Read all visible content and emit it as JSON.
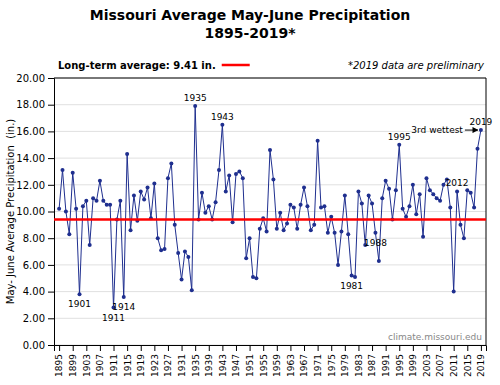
{
  "chart_data": {
    "type": "line",
    "title": "Missouri Average May-June Precipitation",
    "subtitle": "1895-2019*",
    "y_label": "May- June Average Precipitation  (in.)",
    "x": [
      1895,
      1896,
      1897,
      1898,
      1899,
      1900,
      1901,
      1902,
      1903,
      1904,
      1905,
      1906,
      1907,
      1908,
      1909,
      1910,
      1911,
      1912,
      1913,
      1914,
      1915,
      1916,
      1917,
      1918,
      1919,
      1920,
      1921,
      1922,
      1923,
      1924,
      1925,
      1926,
      1927,
      1928,
      1929,
      1930,
      1931,
      1932,
      1933,
      1934,
      1935,
      1936,
      1937,
      1938,
      1939,
      1940,
      1941,
      1942,
      1943,
      1944,
      1945,
      1946,
      1947,
      1948,
      1949,
      1950,
      1951,
      1952,
      1953,
      1954,
      1955,
      1956,
      1957,
      1958,
      1959,
      1960,
      1961,
      1962,
      1963,
      1964,
      1965,
      1966,
      1967,
      1968,
      1969,
      1970,
      1971,
      1972,
      1973,
      1974,
      1975,
      1976,
      1977,
      1978,
      1979,
      1980,
      1981,
      1982,
      1983,
      1984,
      1985,
      1986,
      1987,
      1988,
      1989,
      1990,
      1991,
      1992,
      1993,
      1994,
      1995,
      1996,
      1997,
      1998,
      1999,
      2000,
      2001,
      2002,
      2003,
      2004,
      2005,
      2006,
      2007,
      2008,
      2009,
      2010,
      2011,
      2012,
      2013,
      2014,
      2015,
      2016,
      2017,
      2018,
      2019
    ],
    "values": [
      10.2,
      13.1,
      10.0,
      8.3,
      12.9,
      10.2,
      3.8,
      10.4,
      10.8,
      7.5,
      11.0,
      10.8,
      12.3,
      10.8,
      10.5,
      10.5,
      2.8,
      9.4,
      10.8,
      3.6,
      14.3,
      8.6,
      11.2,
      9.3,
      11.5,
      10.9,
      11.8,
      9.5,
      12.1,
      8.0,
      7.1,
      7.2,
      12.5,
      13.6,
      9.0,
      6.9,
      4.9,
      7.0,
      6.6,
      4.1,
      17.9,
      9.4,
      11.4,
      9.9,
      10.4,
      9.4,
      10.7,
      13.1,
      16.5,
      11.5,
      12.7,
      9.2,
      12.8,
      13.0,
      12.5,
      6.5,
      8.0,
      5.1,
      5.0,
      8.7,
      9.5,
      8.5,
      14.6,
      12.4,
      8.7,
      9.9,
      8.6,
      9.1,
      10.5,
      10.3,
      8.7,
      10.5,
      11.8,
      10.4,
      8.6,
      9.0,
      15.3,
      10.3,
      10.4,
      8.4,
      9.6,
      8.4,
      6.0,
      8.5,
      11.2,
      8.3,
      5.2,
      5.1,
      11.5,
      10.6,
      7.5,
      11.2,
      10.6,
      8.4,
      6.3,
      11.0,
      12.3,
      11.7,
      9.4,
      11.6,
      15.0,
      10.2,
      9.6,
      10.4,
      12.0,
      9.8,
      11.3,
      8.1,
      12.5,
      11.6,
      11.3,
      11.0,
      10.8,
      12.0,
      12.4,
      10.3,
      4.0,
      11.5,
      9.0,
      8.0,
      11.6,
      11.4,
      10.3,
      14.7,
      16.1
    ],
    "color": "#1F2F8F",
    "marker": "circle",
    "xlim": [
      1893.5,
      2020.5
    ],
    "xticks": [
      1895,
      1899,
      1903,
      1907,
      1911,
      1915,
      1919,
      1923,
      1927,
      1931,
      1935,
      1939,
      1943,
      1947,
      1951,
      1955,
      1959,
      1963,
      1967,
      1971,
      1975,
      1979,
      1983,
      1987,
      1991,
      1995,
      1999,
      2003,
      2007,
      2011,
      2015,
      2019
    ],
    "ylim": [
      0.0,
      20.0
    ],
    "yticks": [
      {
        "value": 0.0,
        "label": "0.00"
      },
      {
        "value": 2.0,
        "label": "2.00"
      },
      {
        "value": 4.0,
        "label": "4.00"
      },
      {
        "value": 6.0,
        "label": "6.00"
      },
      {
        "value": 8.0,
        "label": "8.00"
      },
      {
        "value": 10.0,
        "label": "10.00"
      },
      {
        "value": 12.0,
        "label": "12.00"
      },
      {
        "value": 14.0,
        "label": "14.00"
      },
      {
        "value": 16.0,
        "label": "16.00"
      },
      {
        "value": 18.0,
        "label": "18.00"
      },
      {
        "value": 20.0,
        "label": "20.00"
      }
    ],
    "grid": true,
    "reference_lines": [
      {
        "value": 9.41,
        "label": "Long-term average: 9.41 in.",
        "color": "#FF0000"
      }
    ],
    "annotations": [
      {
        "text": "1901",
        "x": 1901
      },
      {
        "text": "1911",
        "x": 1911
      },
      {
        "text": "1914",
        "x": 1914
      },
      {
        "text": "1988",
        "x": 1988
      },
      {
        "text": "2012",
        "x": 2012
      },
      {
        "text": "1935",
        "x": 1935
      },
      {
        "text": "1943",
        "x": 1943
      },
      {
        "text": "1981",
        "x": 1981
      },
      {
        "text": "1995",
        "x": 1995
      },
      {
        "text": "2019",
        "x": 2019
      },
      {
        "text": "3rd wettest",
        "x": 2019,
        "arrow": true
      }
    ],
    "note": "*2019 data are preliminary",
    "source": "climate.missouri.edu"
  }
}
